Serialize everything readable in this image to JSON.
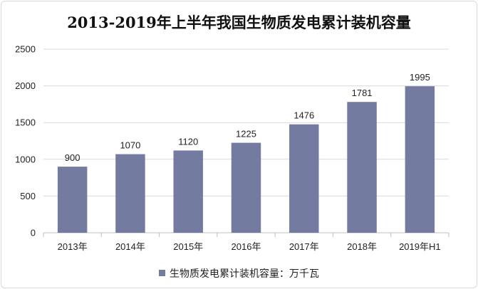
{
  "chart_data": {
    "type": "bar",
    "title": "2013-2019年上半年我国生物质发电累计装机容量",
    "categories": [
      "2013年",
      "2014年",
      "2015年",
      "2016年",
      "2017年",
      "2018年",
      "2019年H1"
    ],
    "series": [
      {
        "name": "生物质发电累计装机容量：万千瓦",
        "values": [
          900,
          1070,
          1120,
          1225,
          1476,
          1781,
          1995
        ]
      }
    ],
    "ylim": [
      0,
      2500
    ],
    "yticks": [
      0,
      500,
      1000,
      1500,
      2000,
      2500
    ],
    "xlabel": "",
    "ylabel": "",
    "grid": true,
    "legend_position": "bottom",
    "data_labels": true,
    "colors": {
      "bar": "#737ba0",
      "grid": "#d9d9d9",
      "axis": "#bfbfbf"
    }
  }
}
